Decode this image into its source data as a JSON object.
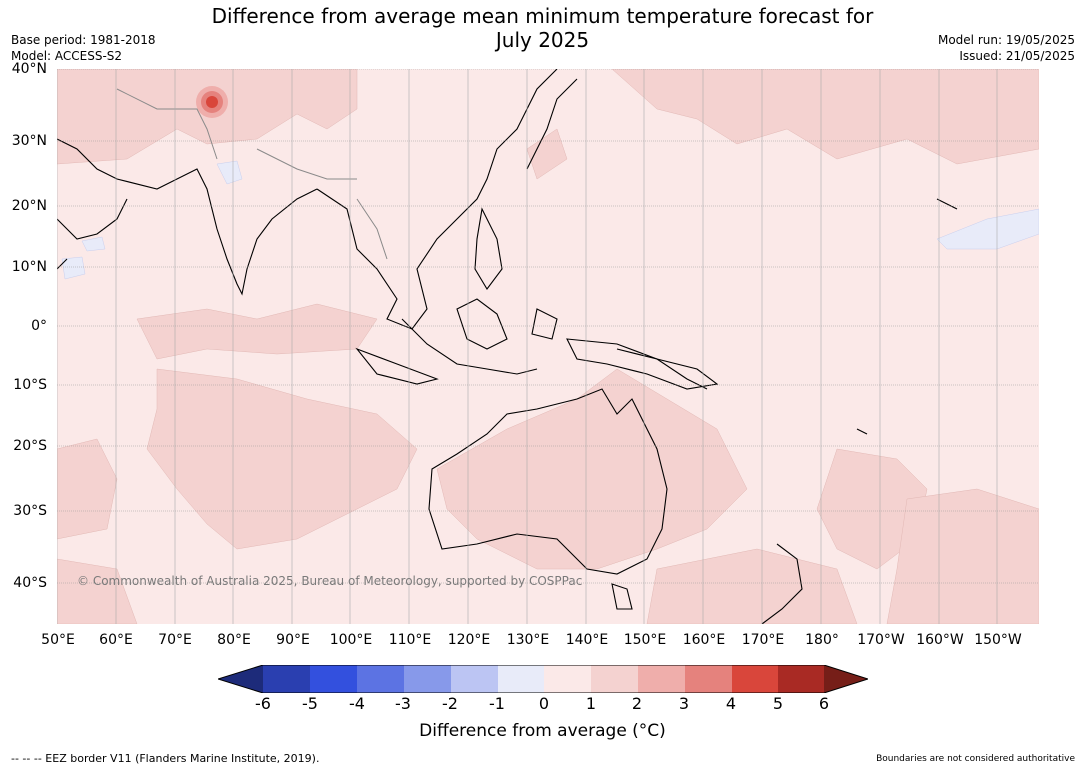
{
  "header": {
    "title_line1": "Difference from average mean minimum temperature forecast for",
    "title_line2": "July 2025",
    "base_period": "Base period: 1981-2018",
    "model": "Model: ACCESS-S2",
    "model_run": "Model run: 19/05/2025",
    "issued": "Issued: 21/05/2025"
  },
  "map": {
    "lat_labels": [
      "40°N",
      "30°N",
      "20°N",
      "10°N",
      "0°",
      "10°S",
      "20°S",
      "30°S",
      "40°S"
    ],
    "lon_labels": [
      "50°E",
      "60°E",
      "70°E",
      "80°E",
      "90°E",
      "100°E",
      "110°E",
      "120°E",
      "130°E",
      "140°E",
      "150°E",
      "160°E",
      "170°E",
      "180°",
      "170°W",
      "160°W",
      "150°W"
    ],
    "copyright": "© Commonwealth of Australia 2025, Bureau of Meteorology, supported by COSPPac",
    "colors": {
      "ocean_0_1": "#fbe9e8",
      "band_1_2": "#f4d2d0",
      "band_neg1_0": "#e8ebf9",
      "land_outline": "#000000",
      "border": "#8a8a8a",
      "hotspot": "#d9463b"
    }
  },
  "colorbar": {
    "ticks": [
      "-6",
      "-5",
      "-4",
      "-3",
      "-2",
      "-1",
      "0",
      "1",
      "2",
      "3",
      "4",
      "5",
      "6"
    ],
    "colors": [
      "#1d2b7a",
      "#2a3fb0",
      "#3350de",
      "#5c73e3",
      "#8799ea",
      "#bcc5f3",
      "#e8ebf9",
      "#fbe9e8",
      "#f4d2d0",
      "#efaeab",
      "#e5827d",
      "#d9463b",
      "#a92a24",
      "#761e18"
    ],
    "label": "Difference from average (°C)"
  },
  "footer": {
    "legend_note": "--  --  -- EEZ border V11 (Flanders Marine Institute, 2019).",
    "disclaimer": "Boundaries are not considered authoritative"
  }
}
